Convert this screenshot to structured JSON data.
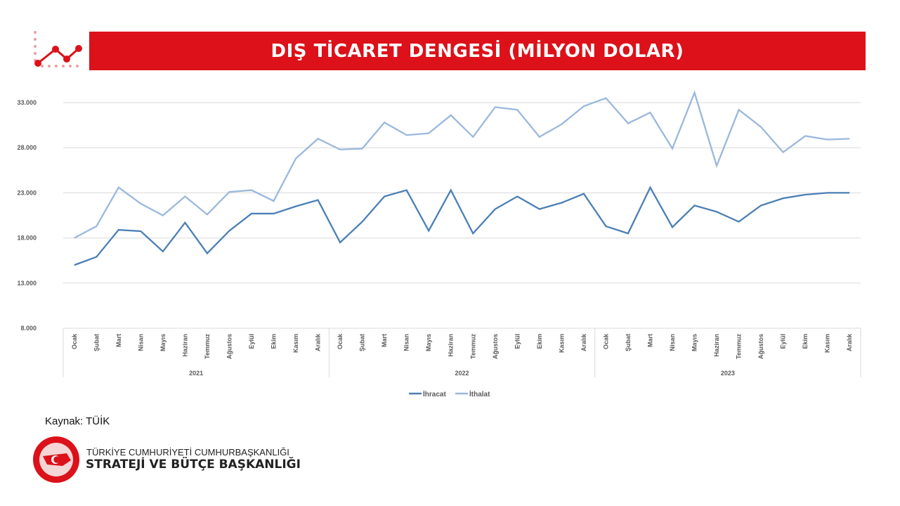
{
  "header": {
    "title": "DIŞ TİCARET DENGESİ (MİLYON DOLAR)",
    "icon": "line-chart-icon"
  },
  "footer": {
    "source": "Kaynak: TÜİK",
    "org_line1": "TÜRKİYE CUMHURİYETİ CUMHURBAŞKANLIĞI",
    "org_line2": "STRATEJİ VE BÜTÇE BAŞKANLIĞI",
    "logo_text": "T.C. CUMHURBAŞKANLIĞI STRATEJİ VE BÜTÇE BAŞKANLIĞI"
  },
  "chart_data": {
    "type": "line",
    "title": "DIŞ TİCARET DENGESİ (MİLYON DOLAR)",
    "ylim": [
      8000,
      33000
    ],
    "yticks": [
      "8.000",
      "13.000",
      "18.000",
      "23.000",
      "28.000",
      "33.000"
    ],
    "ytick_values": [
      8000,
      13000,
      18000,
      23000,
      28000,
      33000
    ],
    "grid": true,
    "months": [
      "Ocak",
      "Şubat",
      "Mart",
      "Nisan",
      "Mayıs",
      "Haziran",
      "Temmuz",
      "Ağustos",
      "Eylül",
      "Ekim",
      "Kasım",
      "Aralık"
    ],
    "years": [
      "2021",
      "2022",
      "2023"
    ],
    "legend_position": "bottom",
    "series": [
      {
        "name": "İhracat",
        "color": "#4a7fb5",
        "values": [
          15000,
          15900,
          18900,
          18750,
          16500,
          19700,
          16300,
          18800,
          20700,
          20700,
          21500,
          22200,
          17500,
          19800,
          22600,
          23300,
          18800,
          23300,
          18500,
          21200,
          22600,
          21200,
          21900,
          22900,
          19300,
          18500,
          23600,
          19200,
          21600,
          20900,
          19800,
          21600,
          22400,
          22800,
          23000,
          23000
        ]
      },
      {
        "name": "İthalat",
        "color": "#9ab8dc",
        "values": [
          18000,
          19300,
          23600,
          21800,
          20500,
          22600,
          20600,
          23100,
          23300,
          22100,
          26800,
          29000,
          27800,
          27900,
          30800,
          29400,
          29600,
          31600,
          29200,
          32500,
          32200,
          29200,
          30600,
          32600,
          33500,
          30700,
          31900,
          27900,
          34100,
          26000,
          32200,
          30300,
          27500,
          29300,
          28900,
          29000
        ]
      }
    ]
  }
}
